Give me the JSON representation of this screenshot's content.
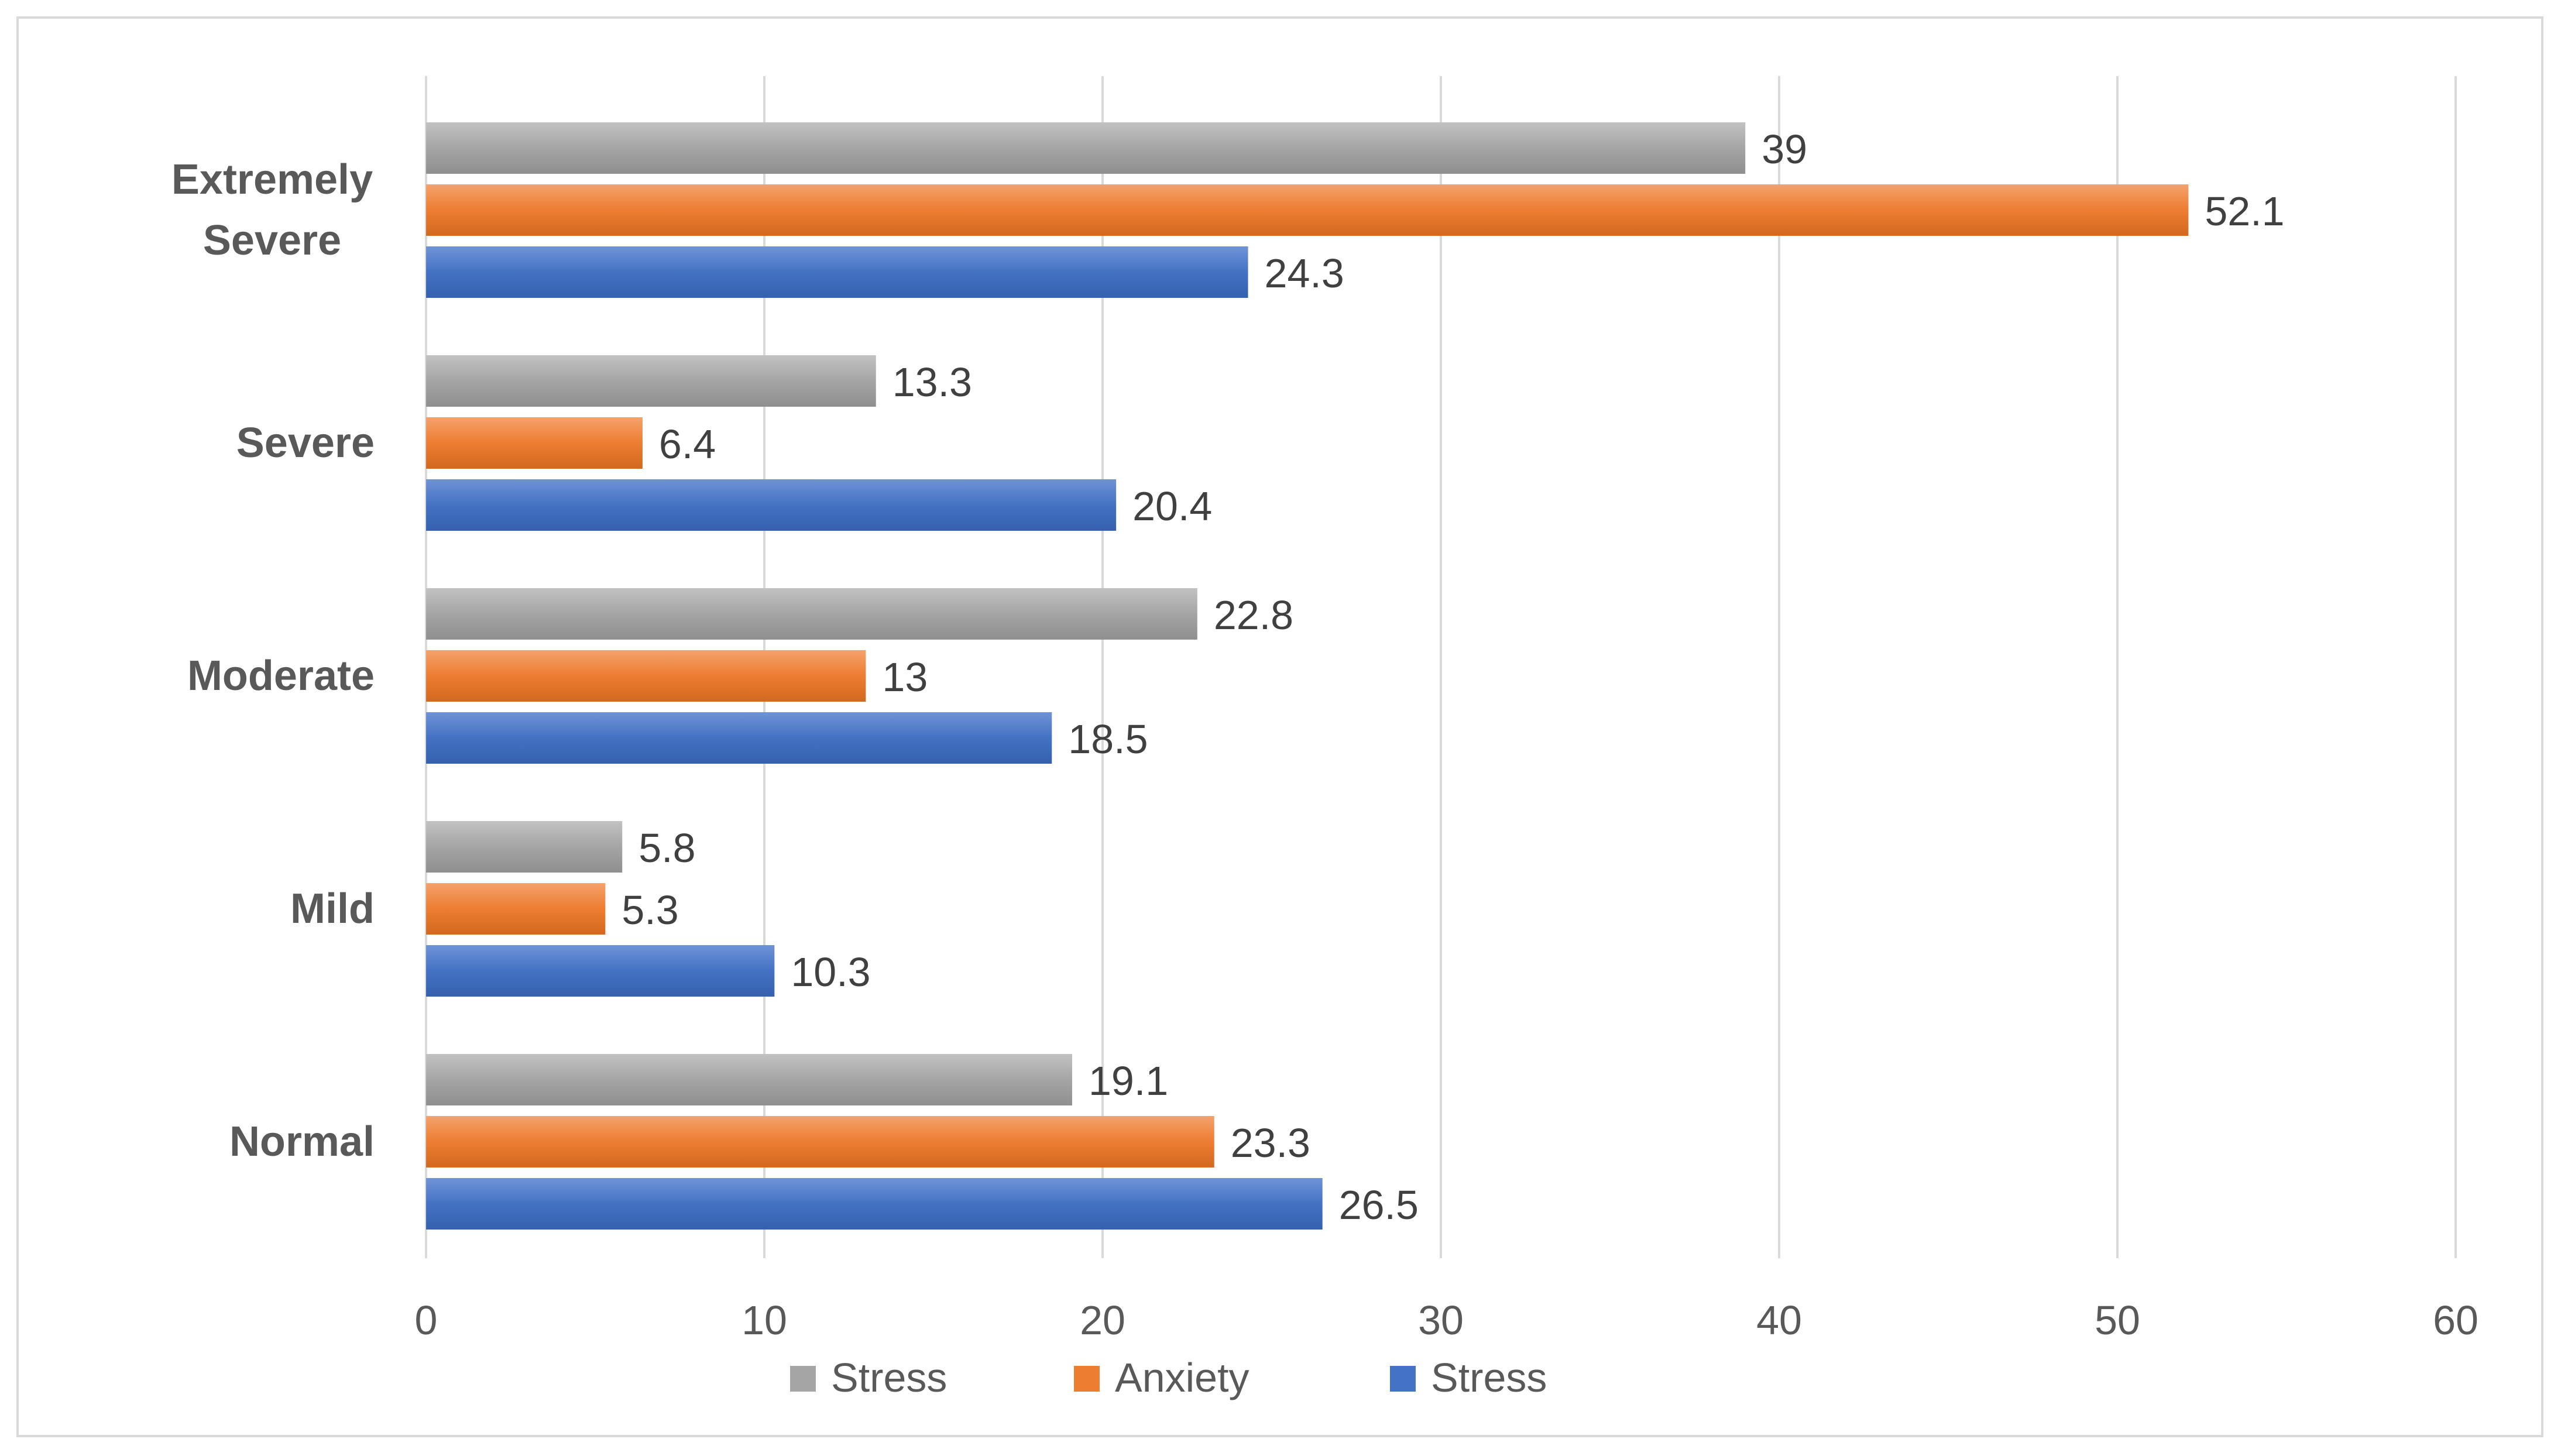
{
  "chart_data": {
    "type": "bar",
    "orientation": "horizontal",
    "title": "",
    "xlabel": "",
    "ylabel": "",
    "xlim": [
      0,
      60
    ],
    "x_ticks": [
      0,
      10,
      20,
      30,
      40,
      50,
      60
    ],
    "grid": true,
    "legend_position": "bottom",
    "categories": [
      "Extremely Severe",
      "Severe",
      "Moderate",
      "Mild",
      "Normal"
    ],
    "category_lines": {
      "Extremely Severe": [
        "Extremely",
        "Severe"
      ]
    },
    "series": [
      {
        "name": "Stress",
        "color": "#a5a5a5",
        "values": [
          39,
          13.3,
          22.8,
          5.8,
          19.1
        ],
        "labels": [
          "39",
          "13.3",
          "22.8",
          "5.8",
          "19.1"
        ]
      },
      {
        "name": "Anxiety",
        "color": "#ed7d31",
        "values": [
          52.1,
          6.4,
          13,
          5.3,
          23.3
        ],
        "labels": [
          "52.1",
          "6.4",
          "13",
          "5.3",
          "23.3"
        ]
      },
      {
        "name": "Stress",
        "color": "#4472c4",
        "values": [
          24.3,
          20.4,
          18.5,
          10.3,
          26.5
        ],
        "labels": [
          "24.3",
          "20.4",
          "18.5",
          "10.3",
          "26.5"
        ]
      }
    ],
    "colors": {
      "gridline": "#d9d9d9",
      "axis_text": "#595959",
      "data_label": "#404040"
    }
  }
}
